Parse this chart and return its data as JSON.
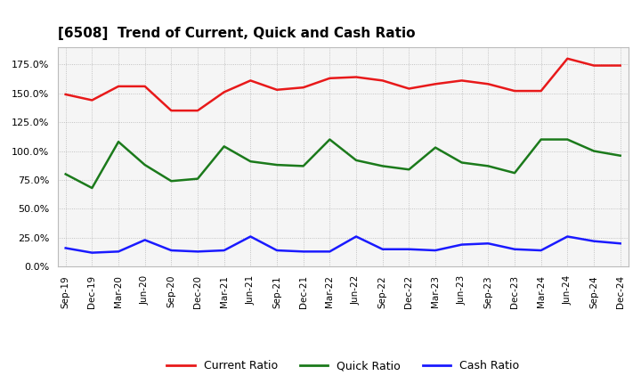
{
  "title": "[6508]  Trend of Current, Quick and Cash Ratio",
  "labels": [
    "Sep-19",
    "Dec-19",
    "Mar-20",
    "Jun-20",
    "Sep-20",
    "Dec-20",
    "Mar-21",
    "Jun-21",
    "Sep-21",
    "Dec-21",
    "Mar-22",
    "Jun-22",
    "Sep-22",
    "Dec-22",
    "Mar-23",
    "Jun-23",
    "Sep-23",
    "Dec-23",
    "Mar-24",
    "Jun-24",
    "Sep-24",
    "Dec-24"
  ],
  "current_ratio": [
    149,
    144,
    156,
    156,
    135,
    135,
    151,
    161,
    153,
    155,
    163,
    164,
    161,
    154,
    158,
    161,
    158,
    152,
    152,
    180,
    174,
    174
  ],
  "quick_ratio": [
    80,
    68,
    108,
    88,
    74,
    76,
    104,
    91,
    88,
    87,
    110,
    92,
    87,
    84,
    103,
    90,
    87,
    81,
    110,
    110,
    100,
    96
  ],
  "cash_ratio": [
    16,
    12,
    13,
    23,
    14,
    13,
    14,
    26,
    14,
    13,
    13,
    26,
    15,
    15,
    14,
    19,
    20,
    15,
    14,
    26,
    22,
    20
  ],
  "current_color": "#e8191a",
  "quick_color": "#1b7a1b",
  "cash_color": "#1a1aff",
  "bg_color": "#ffffff",
  "plot_bg_color": "#f5f5f5",
  "grid_color": "#999999",
  "ylim": [
    0,
    190
  ],
  "yticks": [
    0,
    25,
    50,
    75,
    100,
    125,
    150,
    175
  ],
  "legend_labels": [
    "Current Ratio",
    "Quick Ratio",
    "Cash Ratio"
  ]
}
